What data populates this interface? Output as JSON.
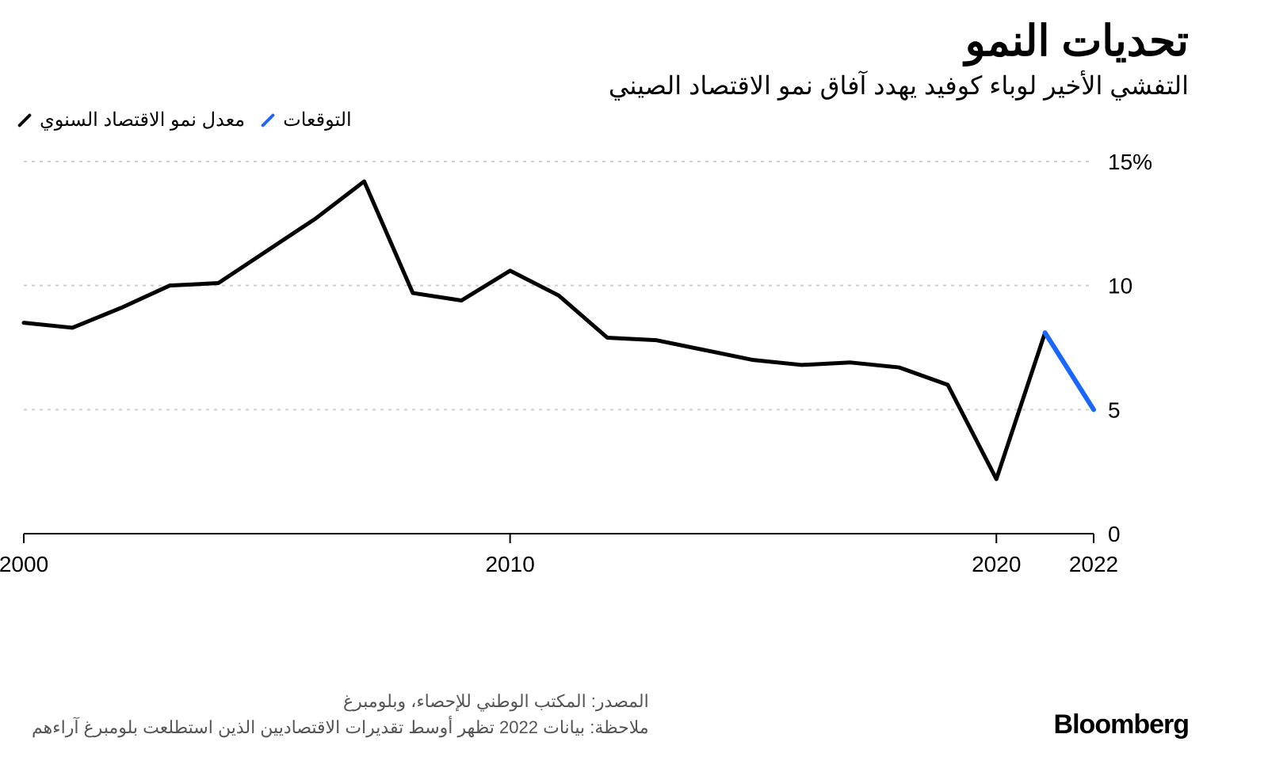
{
  "header": {
    "title": "تحديات النمو",
    "subtitle": "التفشي الأخير لوباء كوفيد يهدد آفاق نمو الاقتصاد الصيني"
  },
  "legend": {
    "series_actual": {
      "label": "معدل نمو الاقتصاد السنوي",
      "color": "#000000"
    },
    "series_forecast": {
      "label": "التوقعات",
      "color": "#1967ff"
    }
  },
  "chart": {
    "type": "line",
    "background_color": "#ffffff",
    "grid_color": "#cfcfcf",
    "axis_color": "#000000",
    "line_width_actual": 5,
    "line_width_forecast": 6,
    "x": {
      "min": 2000,
      "max": 2022,
      "ticks": [
        2000,
        2010,
        2020,
        2022
      ],
      "fontsize": 28
    },
    "y": {
      "min": 0,
      "max": 15,
      "unit": "%",
      "ticks": [
        0,
        5,
        10,
        15
      ],
      "tick_labels": [
        "0",
        "5",
        "10",
        "15%"
      ],
      "fontsize": 28
    },
    "series_actual": {
      "years": [
        2000,
        2001,
        2002,
        2003,
        2004,
        2005,
        2006,
        2007,
        2008,
        2009,
        2010,
        2011,
        2012,
        2013,
        2014,
        2015,
        2016,
        2017,
        2018,
        2019,
        2020,
        2021
      ],
      "values": [
        8.5,
        8.3,
        9.1,
        10.0,
        10.1,
        11.4,
        12.7,
        14.2,
        9.7,
        9.4,
        10.6,
        9.6,
        7.9,
        7.8,
        7.4,
        7.0,
        6.8,
        6.9,
        6.7,
        6.0,
        2.2,
        8.1
      ]
    },
    "series_forecast": {
      "years": [
        2021,
        2022
      ],
      "values": [
        8.1,
        5.0
      ]
    }
  },
  "footer": {
    "source": "المصدر: المكتب الوطني للإحصاء، وبلومبرغ",
    "note": "ملاحظة: بيانات 2022 تظهر أوسط تقديرات الاقتصاديين الذين استطلعت بلومبرغ آراءهم",
    "brand": "Bloomberg"
  }
}
